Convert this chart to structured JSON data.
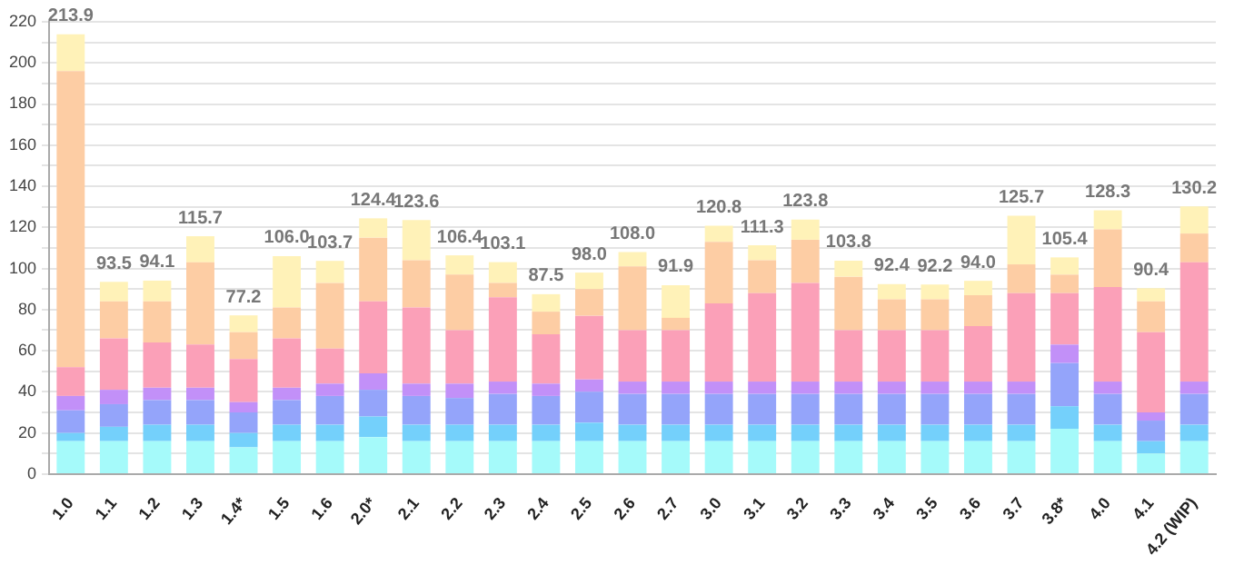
{
  "chart_data": {
    "type": "bar",
    "stacked": true,
    "categories": [
      "1.0",
      "1.1",
      "1.2",
      "1.3",
      "1.4*",
      "1.5",
      "1.6",
      "2.0*",
      "2.1",
      "2.2",
      "2.3",
      "2.4",
      "2.5",
      "2.6",
      "2.7",
      "3.0",
      "3.1",
      "3.2",
      "3.3",
      "3.4",
      "3.5",
      "3.6",
      "3.7",
      "3.8*",
      "4.0",
      "4.1",
      "4.2 (WIP)"
    ],
    "series": [
      {
        "color": "#a5fafa",
        "values": [
          16,
          16,
          16,
          16,
          13,
          16,
          16,
          18,
          16,
          16,
          16,
          16,
          16,
          16,
          16,
          16,
          16,
          16,
          16,
          16,
          16,
          16,
          16,
          22,
          16,
          10,
          16
        ]
      },
      {
        "color": "#74d0fb",
        "values": [
          4,
          7,
          8,
          8,
          7,
          8,
          8,
          10,
          8,
          8,
          8,
          8,
          9,
          8,
          8,
          8,
          8,
          8,
          8,
          8,
          8,
          8,
          8,
          11,
          8,
          6,
          8
        ]
      },
      {
        "color": "#94a4fa",
        "values": [
          11,
          11,
          12,
          12,
          10,
          12,
          14,
          13,
          14,
          13,
          15,
          14,
          15,
          15,
          15,
          15,
          15,
          15,
          15,
          15,
          15,
          15,
          15,
          21,
          15,
          10,
          15
        ]
      },
      {
        "color": "#c290f8",
        "values": [
          7,
          7,
          6,
          6,
          5,
          6,
          6,
          8,
          6,
          7,
          6,
          6,
          6,
          6,
          6,
          6,
          6,
          6,
          6,
          6,
          6,
          6,
          6,
          9,
          6,
          4,
          6
        ]
      },
      {
        "color": "#fba0b8",
        "values": [
          14,
          25,
          22,
          21,
          21,
          24,
          17,
          35,
          37,
          26,
          41,
          24,
          31,
          25,
          25,
          38,
          43,
          48,
          25,
          25,
          25,
          27,
          43,
          25,
          46,
          39,
          58
        ]
      },
      {
        "color": "#fdcda4",
        "values": [
          144,
          18,
          20,
          40,
          13,
          15,
          32,
          31,
          23,
          27,
          7,
          11,
          13,
          31,
          6,
          30,
          16,
          21,
          26,
          15,
          15,
          15,
          14,
          9,
          28,
          15,
          14
        ]
      },
      {
        "color": "#fff2b8",
        "values": [
          17.9,
          9.5,
          10.1,
          12.7,
          8.2,
          25,
          10.7,
          9.4,
          19.6,
          9.4,
          10.1,
          8.5,
          8,
          7,
          15.9,
          7.8,
          7.3,
          9.8,
          7.8,
          7.4,
          7.2,
          7,
          23.7,
          8.4,
          9.3,
          6.4,
          13.2
        ]
      }
    ],
    "totals": [
      "213.9",
      "93.5",
      "94.1",
      "115.7",
      "77.2",
      "106.0",
      "103.7",
      "124.4",
      "123.6",
      "106.4",
      "103.1",
      "87.5",
      "98.0",
      "108.0",
      "91.9",
      "120.8",
      "111.3",
      "123.8",
      "103.8",
      "92.4",
      "92.2",
      "94.0",
      "125.7",
      "105.4",
      "128.3",
      "90.4",
      "130.2"
    ],
    "ylim": [
      0,
      220
    ],
    "yticks": [
      0,
      {
        "value": 10,
        "label": null
      },
      20,
      {
        "value": 30,
        "label": null
      },
      40,
      {
        "value": 50,
        "label": null
      },
      60,
      {
        "value": 70,
        "label": null
      },
      80,
      {
        "value": 90,
        "label": null
      },
      100,
      {
        "value": 110,
        "label": null
      },
      120,
      {
        "value": 130,
        "label": null
      },
      140,
      {
        "value": 150,
        "label": null
      },
      160,
      {
        "value": 170,
        "label": null
      },
      180,
      {
        "value": 190,
        "label": null
      },
      200,
      {
        "value": 210,
        "label": null
      },
      220
    ],
    "grid": "y",
    "legend": false
  }
}
